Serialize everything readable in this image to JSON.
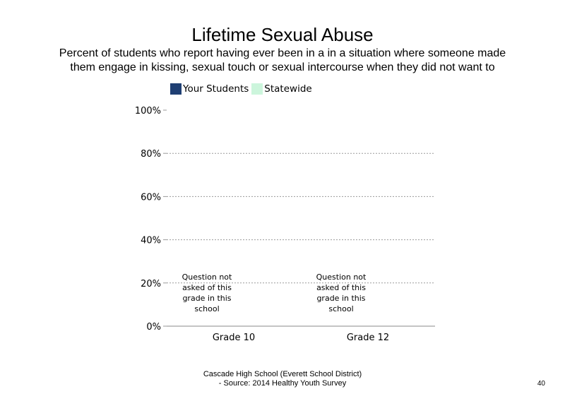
{
  "chart_data": {
    "type": "bar",
    "title": "Lifetime Sexual Abuse",
    "subtitle": "Percent of students who report having ever been in a in a situation where someone made them engage in kissing, sexual touch or sexual intercourse when they did not want to",
    "categories": [
      "Grade 10",
      "Grade 12"
    ],
    "series": [
      {
        "name": "Your Students",
        "color": "#1F3F73",
        "values": [
          null,
          null
        ]
      },
      {
        "name": "Statewide",
        "color": "#CCF5DC",
        "values": [
          null,
          null
        ]
      }
    ],
    "ylim": [
      0,
      100
    ],
    "yticks": [
      "0%",
      "20%",
      "40%",
      "60%",
      "80%",
      "100%"
    ],
    "ytick_values": [
      0,
      20,
      40,
      60,
      80,
      100
    ],
    "grid": true,
    "legend": "top-left",
    "annotations": [
      {
        "category": "Grade 10",
        "text": [
          "Question not",
          "asked of this",
          "grade in this",
          "school"
        ]
      },
      {
        "category": "Grade 12",
        "text": [
          "Question not",
          "asked of this",
          "grade in this",
          "school"
        ]
      }
    ]
  },
  "footer": {
    "line1": "Cascade High School (Everett School District)",
    "line2": "- Source: 2014 Healthy Youth Survey"
  },
  "page_number": "40"
}
